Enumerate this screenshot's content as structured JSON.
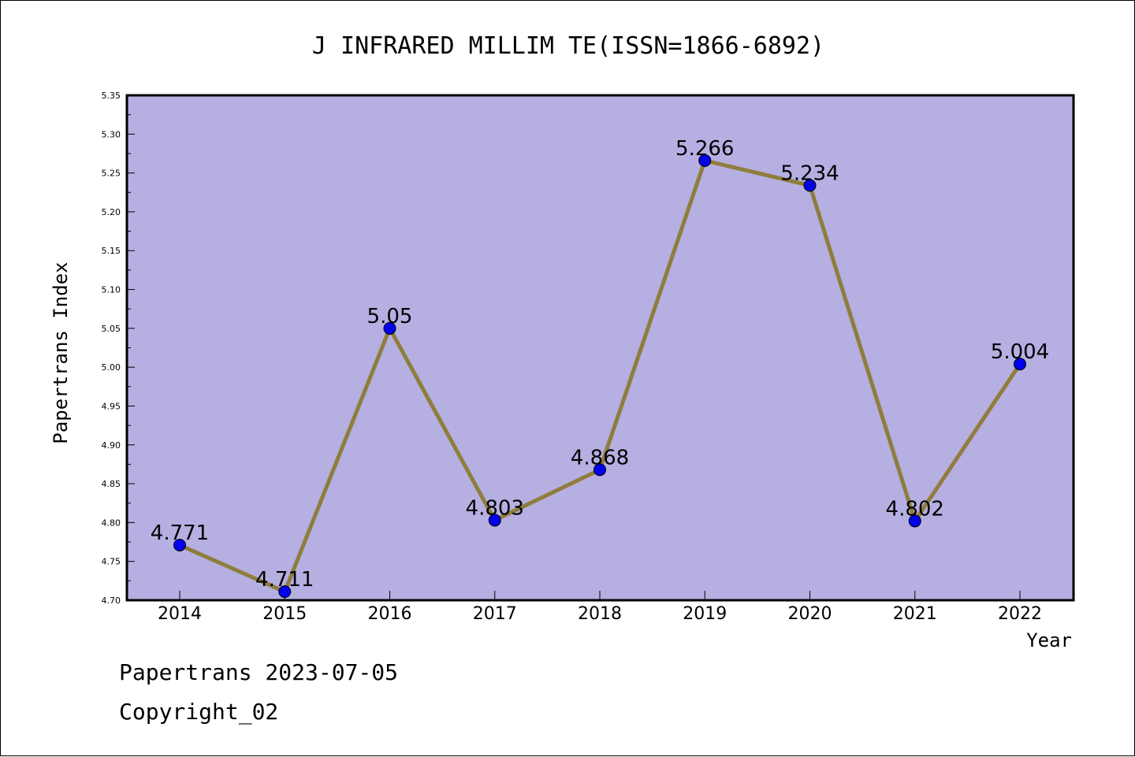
{
  "chart_data": {
    "type": "line",
    "title": "J INFRARED MILLIM TE(ISSN=1866-6892)",
    "xlabel": "Year",
    "ylabel": "Papertrans Index",
    "categories": [
      "2014",
      "2015",
      "2016",
      "2017",
      "2018",
      "2019",
      "2020",
      "2021",
      "2022"
    ],
    "series": [
      {
        "values": [
          4.771,
          4.711,
          5.05,
          4.803,
          4.868,
          5.266,
          5.234,
          4.802,
          5.004
        ],
        "labels": [
          "4.771",
          "4.711",
          "5.05",
          "4.803",
          "4.868",
          "5.266",
          "5.234",
          "4.802",
          "5.004"
        ]
      }
    ],
    "ylim": [
      4.7,
      5.35
    ],
    "yticks": [
      "4.70",
      "4.75",
      "4.80",
      "4.85",
      "4.90",
      "4.95",
      "5.00",
      "5.05",
      "5.10",
      "5.15",
      "5.20",
      "5.25",
      "5.30",
      "5.35"
    ],
    "grid": false,
    "colors": {
      "plot_background": "#b5afe2",
      "line": "#8f7d3c",
      "marker": "#0000ee"
    }
  },
  "footer": {
    "date_text": "Papertrans 2023-07-05",
    "copyright_text": "Copyright_02"
  }
}
